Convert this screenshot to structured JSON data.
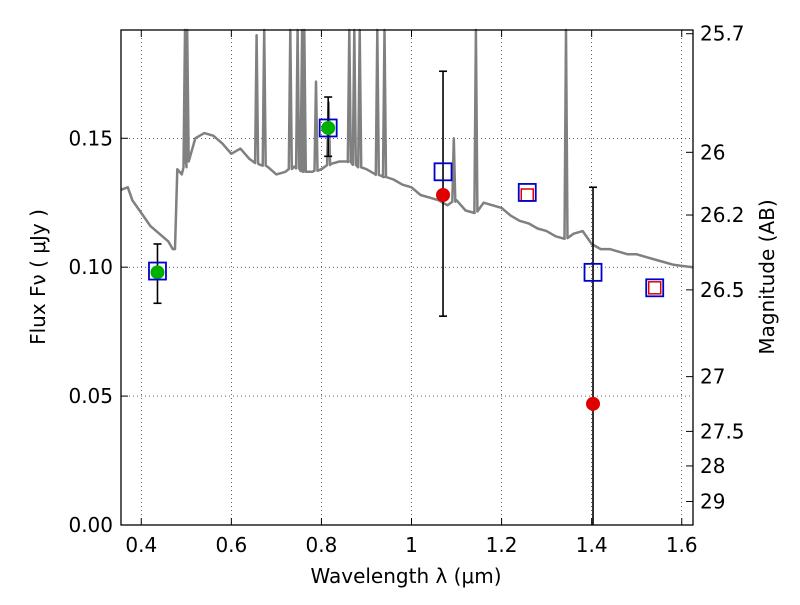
{
  "chart_data": {
    "type": "scatter",
    "xlabel": "Wavelength  λ (μm)",
    "ylabel": "Flux  Fν  ( μJy )",
    "y2label": "Magnitude (AB)",
    "xlim": [
      0.355,
      1.625
    ],
    "ylim": [
      0.0,
      0.192
    ],
    "grid": true,
    "xticks": [
      0.4,
      0.6,
      0.8,
      1.0,
      1.2,
      1.4,
      1.6
    ],
    "xtick_labels": [
      "0.4",
      "0.6",
      "0.8",
      "1",
      "1.2",
      "1.4",
      "1.6"
    ],
    "yticks": [
      0.0,
      0.05,
      0.1,
      0.15
    ],
    "ytick_labels": [
      "0.00",
      "0.05",
      "0.10",
      "0.15"
    ],
    "mag_ticks": [
      "25.7",
      "26",
      "26.2",
      "26.5",
      "27",
      "27.5",
      "28",
      "29"
    ],
    "colors": {
      "spectrum": "#808080",
      "model": "#0000cc",
      "observed": "#e00000",
      "detected": "#00b000",
      "errorbar": "#000000"
    },
    "spectrum": {
      "name": "",
      "x": [
        0.355,
        0.37,
        0.38,
        0.4,
        0.42,
        0.44,
        0.46,
        0.47,
        0.475,
        0.48,
        0.49,
        0.5,
        0.52,
        0.54,
        0.56,
        0.58,
        0.6,
        0.62,
        0.64,
        0.66,
        0.68,
        0.7,
        0.72,
        0.74,
        0.76,
        0.78,
        0.8,
        0.82,
        0.84,
        0.86,
        0.88,
        0.9,
        0.92,
        0.94,
        0.96,
        0.98,
        1.0,
        1.02,
        1.04,
        1.06,
        1.08,
        1.1,
        1.12,
        1.14,
        1.16,
        1.18,
        1.2,
        1.22,
        1.24,
        1.26,
        1.28,
        1.3,
        1.32,
        1.34,
        1.36,
        1.38,
        1.4,
        1.42,
        1.44,
        1.46,
        1.48,
        1.5,
        1.52,
        1.54,
        1.56,
        1.58,
        1.6,
        1.625
      ],
      "y": [
        0.13,
        0.131,
        0.126,
        0.121,
        0.116,
        0.113,
        0.11,
        0.107,
        0.107,
        0.138,
        0.136,
        0.14,
        0.15,
        0.152,
        0.151,
        0.148,
        0.144,
        0.146,
        0.142,
        0.14,
        0.139,
        0.136,
        0.137,
        0.139,
        0.137,
        0.137,
        0.138,
        0.14,
        0.141,
        0.141,
        0.139,
        0.138,
        0.136,
        0.135,
        0.134,
        0.132,
        0.131,
        0.128,
        0.127,
        0.126,
        0.124,
        0.126,
        0.122,
        0.121,
        0.125,
        0.124,
        0.123,
        0.12,
        0.118,
        0.117,
        0.115,
        0.114,
        0.112,
        0.111,
        0.113,
        0.114,
        0.109,
        0.107,
        0.107,
        0.106,
        0.105,
        0.105,
        0.104,
        0.103,
        0.102,
        0.101,
        0.1005,
        0.1
      ],
      "emission_lines": [
        {
          "x": 0.497,
          "y": 0.192
        },
        {
          "x": 0.502,
          "y": 0.192
        },
        {
          "x": 0.656,
          "y": 0.19
        },
        {
          "x": 0.673,
          "y": 0.192
        },
        {
          "x": 0.731,
          "y": 0.192
        },
        {
          "x": 0.747,
          "y": 0.192
        },
        {
          "x": 0.757,
          "y": 0.192
        },
        {
          "x": 0.762,
          "y": 0.192
        },
        {
          "x": 0.788,
          "y": 0.172
        },
        {
          "x": 0.816,
          "y": 0.164
        },
        {
          "x": 0.862,
          "y": 0.192
        },
        {
          "x": 0.873,
          "y": 0.192
        },
        {
          "x": 0.885,
          "y": 0.192
        },
        {
          "x": 0.924,
          "y": 0.192
        },
        {
          "x": 0.94,
          "y": 0.192
        },
        {
          "x": 1.094,
          "y": 0.15
        },
        {
          "x": 1.143,
          "y": 0.192
        },
        {
          "x": 1.343,
          "y": 0.192
        }
      ]
    },
    "model_points": {
      "name": "",
      "x": [
        0.436,
        0.815,
        1.07,
        1.257,
        1.403,
        1.54
      ],
      "y": [
        0.0985,
        0.154,
        0.137,
        0.129,
        0.098,
        0.092
      ]
    },
    "observed_points": {
      "name": "",
      "x": [
        1.07,
        1.403
      ],
      "y": [
        0.128,
        0.047
      ]
    },
    "detected_points": {
      "name": "",
      "x": [
        0.436,
        0.815
      ],
      "y": [
        0.098,
        0.154
      ]
    },
    "hollow_points": {
      "name": "",
      "x": [
        1.257,
        1.54
      ],
      "y": [
        0.128,
        0.092
      ]
    },
    "error_bars": [
      {
        "x": 0.436,
        "y_low": 0.086,
        "y_high": 0.109
      },
      {
        "x": 0.815,
        "y_low": 0.143,
        "y_high": 0.166
      },
      {
        "x": 1.07,
        "y_low": 0.081,
        "y_high": 0.176
      },
      {
        "x": 1.403,
        "y_low": 0.0,
        "y_high": 0.131
      }
    ]
  }
}
